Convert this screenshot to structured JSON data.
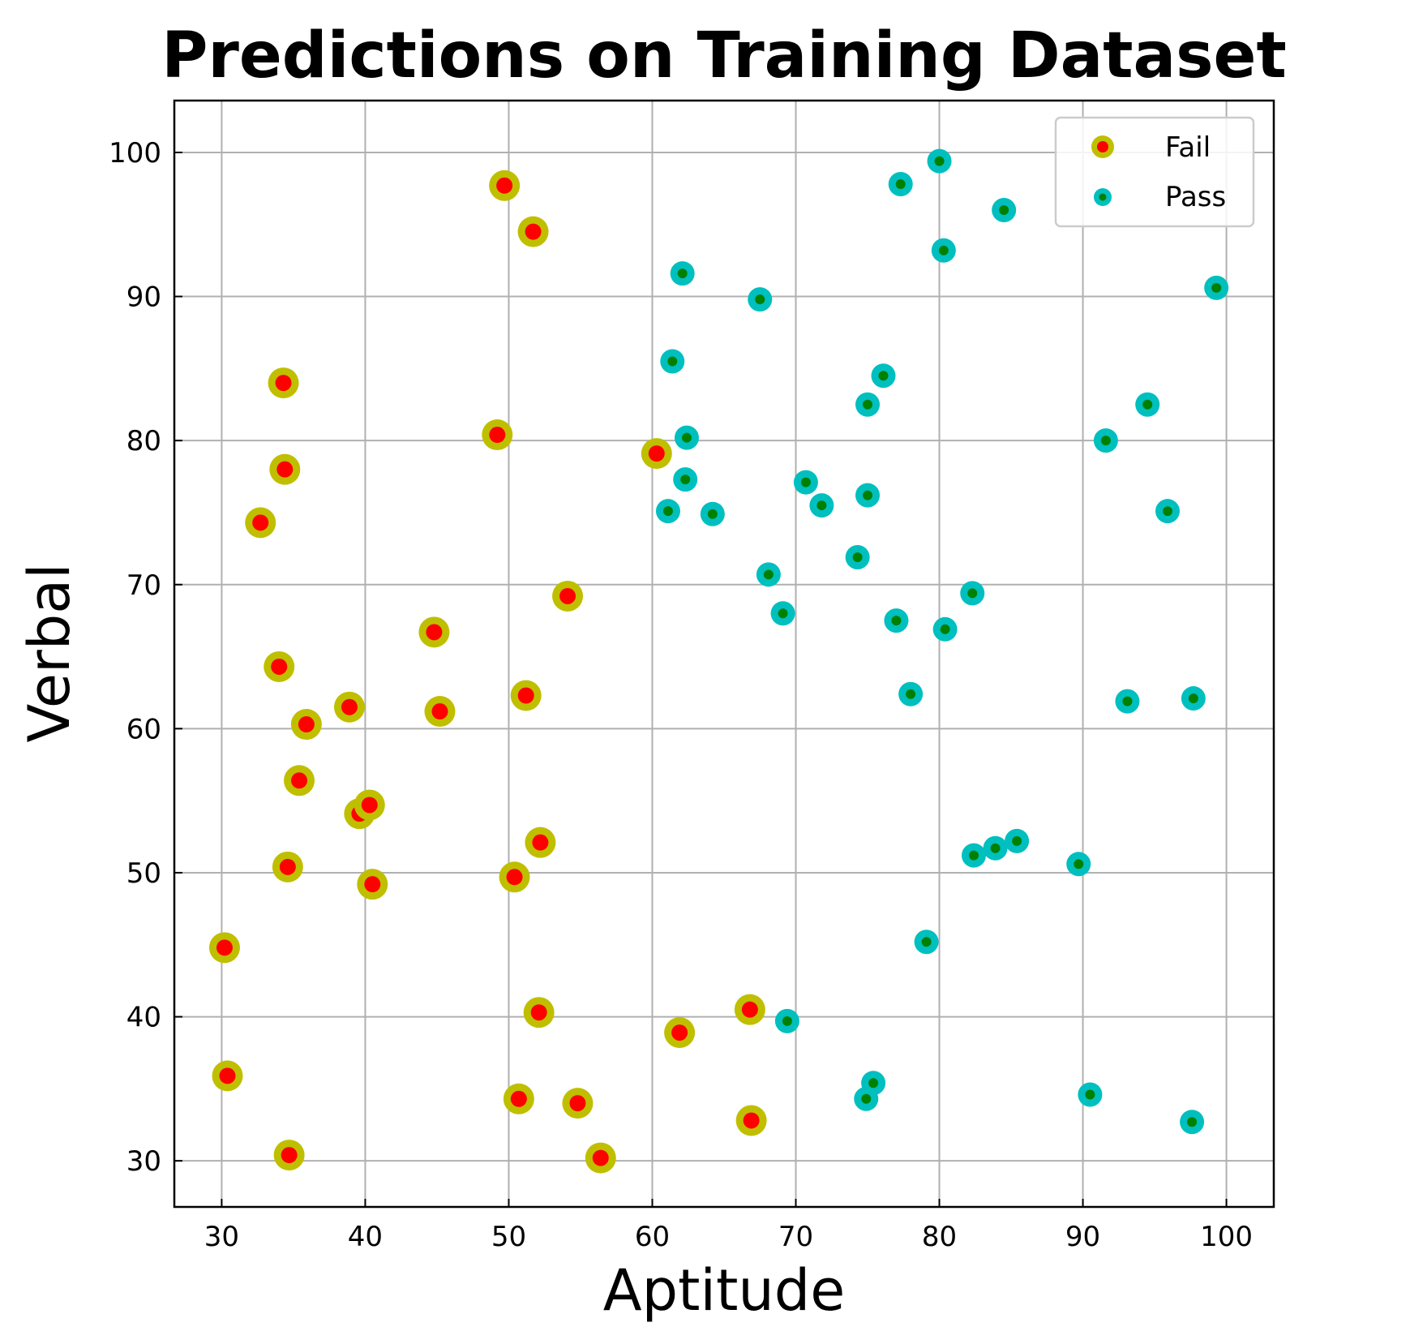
{
  "chart_data": {
    "type": "scatter",
    "title": "Predictions on Training Dataset",
    "xlabel": "Aptitude",
    "ylabel": "Verbal",
    "xlim": [
      26.7,
      103.3
    ],
    "ylim": [
      26.8,
      103.6
    ],
    "xticks": [
      30,
      40,
      50,
      60,
      70,
      80,
      90,
      100
    ],
    "yticks": [
      30,
      40,
      50,
      60,
      70,
      80,
      90,
      100
    ],
    "grid": true,
    "legend_position": "top-right",
    "series": [
      {
        "name": "Fail",
        "outer_color": "#bfbf00",
        "inner_color": "#ff0000",
        "points": [
          [
            49.7,
            97.7
          ],
          [
            51.7,
            94.5
          ],
          [
            34.3,
            84.0
          ],
          [
            34.4,
            78.0
          ],
          [
            49.2,
            80.4
          ],
          [
            60.3,
            79.1
          ],
          [
            32.7,
            74.3
          ],
          [
            54.1,
            69.2
          ],
          [
            44.8,
            66.7
          ],
          [
            34.0,
            64.3
          ],
          [
            38.9,
            61.5
          ],
          [
            45.2,
            61.2
          ],
          [
            51.2,
            62.3
          ],
          [
            35.9,
            60.3
          ],
          [
            35.4,
            56.4
          ],
          [
            39.6,
            54.1
          ],
          [
            40.3,
            54.7
          ],
          [
            52.2,
            52.1
          ],
          [
            34.6,
            50.4
          ],
          [
            40.5,
            49.2
          ],
          [
            50.4,
            49.7
          ],
          [
            30.2,
            44.8
          ],
          [
            52.1,
            40.3
          ],
          [
            66.8,
            40.5
          ],
          [
            61.9,
            38.9
          ],
          [
            30.4,
            35.9
          ],
          [
            50.7,
            34.3
          ],
          [
            54.8,
            34.0
          ],
          [
            66.9,
            32.8
          ],
          [
            34.7,
            30.4
          ],
          [
            56.4,
            30.2
          ]
        ]
      },
      {
        "name": "Pass",
        "outer_color": "#00bfbf",
        "inner_color": "#008000",
        "points": [
          [
            80.0,
            99.4
          ],
          [
            77.3,
            97.8
          ],
          [
            84.5,
            96.0
          ],
          [
            80.3,
            93.2
          ],
          [
            62.1,
            91.6
          ],
          [
            67.5,
            89.8
          ],
          [
            99.3,
            90.6
          ],
          [
            61.4,
            85.5
          ],
          [
            76.1,
            84.5
          ],
          [
            75.0,
            82.5
          ],
          [
            94.5,
            82.5
          ],
          [
            62.4,
            80.2
          ],
          [
            91.6,
            80.0
          ],
          [
            62.3,
            77.3
          ],
          [
            70.7,
            77.1
          ],
          [
            75.0,
            76.2
          ],
          [
            71.8,
            75.5
          ],
          [
            61.1,
            75.1
          ],
          [
            64.2,
            74.9
          ],
          [
            95.9,
            75.1
          ],
          [
            74.3,
            71.9
          ],
          [
            68.1,
            70.7
          ],
          [
            82.3,
            69.4
          ],
          [
            69.1,
            68.0
          ],
          [
            77.0,
            67.5
          ],
          [
            80.4,
            66.9
          ],
          [
            78.0,
            62.4
          ],
          [
            93.1,
            61.9
          ],
          [
            97.7,
            62.1
          ],
          [
            85.4,
            52.2
          ],
          [
            83.9,
            51.7
          ],
          [
            82.4,
            51.2
          ],
          [
            89.7,
            50.6
          ],
          [
            79.1,
            45.2
          ],
          [
            69.4,
            39.7
          ],
          [
            75.4,
            35.4
          ],
          [
            74.9,
            34.3
          ],
          [
            90.5,
            34.6
          ],
          [
            97.6,
            32.7
          ]
        ]
      }
    ]
  }
}
